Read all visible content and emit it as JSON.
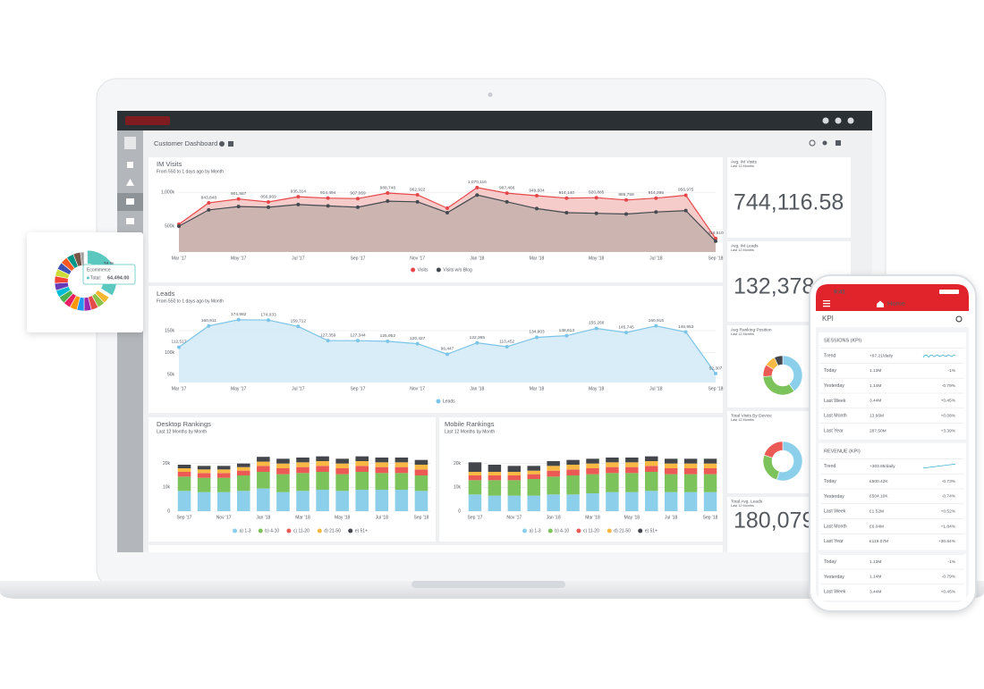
{
  "dashboard": {
    "title": "Customer Dashboard",
    "im_visits": {
      "type": "line",
      "title": "IM Visits",
      "subtitle": "From 550 to 1 days ago by Month",
      "categories": [
        "Mar '17",
        null,
        "May '17",
        null,
        "Jul '17",
        null,
        "Sep '17",
        null,
        "Nov '17",
        null,
        "Jan '18",
        null,
        "Mar '18",
        null,
        "May '18",
        null,
        "Jul '18",
        null,
        "Sep '18"
      ],
      "series": [
        {
          "name": "Visits",
          "color": "#e8474a",
          "area_color": "#f4c6c4",
          "values": [
            528000,
            843848,
            901587,
            856969,
            935314,
            914494,
            907069,
            988748,
            962922,
            765000,
            1070116,
            987466,
            949604,
            914140,
            920885,
            886759,
            914295,
            956975,
            319510
          ],
          "value_labels": [
            null,
            "843,848",
            "901,587",
            "856,969",
            "935,314",
            "914,494",
            "907,069",
            "988,748",
            "962,922",
            null,
            "1,070,116",
            "987,466",
            "949,604",
            "914,140",
            "920,885",
            "886,759",
            "914,295",
            "956,975",
            "319,510"
          ]
        },
        {
          "name": "Visits w/o Blog",
          "color": "#454a50",
          "area_color": "#c8b2ad",
          "values": [
            500000,
            740000,
            790000,
            780000,
            820000,
            800000,
            780000,
            870000,
            860000,
            700000,
            960000,
            860000,
            760000,
            700000,
            690000,
            680000,
            710000,
            730000,
            280000
          ]
        }
      ],
      "ylim": [
        120000,
        1200000
      ],
      "yticks": [
        {
          "value": 500000,
          "label": "500k"
        },
        {
          "value": 1000000,
          "label": "1,000k"
        }
      ],
      "grid": true
    },
    "leads": {
      "type": "line",
      "title": "Leads",
      "subtitle": "From 550 to 1 days ago by Month",
      "categories": [
        "Mar '17",
        null,
        "May '17",
        null,
        "Jul '17",
        null,
        "Sep '17",
        null,
        "Nov '17",
        null,
        "Jan '18",
        null,
        "Mar '18",
        null,
        "May '18",
        null,
        "Jul '18",
        null,
        "Sep '18"
      ],
      "series": [
        {
          "name": "Leads",
          "color": "#7cc4e8",
          "area_color": "#d4ebf7",
          "values": [
            112517,
            160911,
            174982,
            174033,
            159712,
            127359,
            127344,
            125952,
            120427,
            96447,
            122365,
            113452,
            134903,
            138613,
            155266,
            145745,
            160915,
            146953,
            52307
          ],
          "value_labels": [
            "112,517",
            "160,911",
            "174,982",
            "174,033",
            "159,712",
            "127,359",
            "127,344",
            "125,952",
            "120,427",
            "96,447",
            "122,365",
            "113,452",
            "134,903",
            "138,613",
            "155,266",
            "145,745",
            "160,915",
            "146,953",
            "52,307"
          ]
        }
      ],
      "ylim": [
        32000,
        201000
      ],
      "yticks": [
        {
          "value": 50000,
          "label": "50k"
        },
        {
          "value": 100000,
          "label": "100k"
        },
        {
          "value": 150000,
          "label": "150k"
        }
      ],
      "grid": true
    },
    "desktop_rankings": {
      "type": "stacked_bar",
      "title": "Desktop Rankings",
      "subtitle": "Last 12 Months by Month",
      "categories": [
        "Sep '17",
        null,
        "Nov '17",
        null,
        "Jan '18",
        null,
        "Mar '18",
        null,
        "May '18",
        null,
        "Jul '18",
        null,
        "Sep '18"
      ],
      "series": [
        {
          "name": "a) 1-3",
          "color": "#8ccfeb",
          "values": [
            8500,
            8000,
            8000,
            8500,
            9500,
            8000,
            8500,
            9000,
            8500,
            9000,
            9000,
            9000,
            8500
          ]
        },
        {
          "name": "b) 4-10",
          "color": "#7dc35b",
          "values": [
            6000,
            6000,
            6000,
            6500,
            7000,
            7500,
            7500,
            7500,
            7000,
            7500,
            7000,
            7000,
            6500
          ]
        },
        {
          "name": "c) 11-20",
          "color": "#ec5a55",
          "values": [
            2000,
            2000,
            2000,
            2000,
            2500,
            2500,
            2500,
            2500,
            2500,
            2500,
            2500,
            2500,
            2500
          ]
        },
        {
          "name": "d) 21-50",
          "color": "#f7b844",
          "values": [
            1500,
            1500,
            1500,
            1500,
            1800,
            2000,
            2000,
            2000,
            2000,
            2000,
            2000,
            2000,
            2000
          ]
        },
        {
          "name": "e) 51+",
          "color": "#43474c",
          "values": [
            1500,
            1500,
            1500,
            1500,
            2000,
            2000,
            2000,
            2000,
            2000,
            2000,
            2000,
            2000,
            2000
          ]
        }
      ],
      "ylim": [
        0,
        27000
      ],
      "yticks": [
        0,
        {
          "value": 10000,
          "label": "10k"
        },
        {
          "value": 20000,
          "label": "20k"
        }
      ],
      "grid": true
    },
    "mobile_rankings": {
      "type": "stacked_bar",
      "title": "Mobile Rankings",
      "subtitle": "Last 12 Months by Month",
      "categories": [
        "Sep '17",
        null,
        "Nov '17",
        null,
        "Jan '18",
        null,
        "Mar '18",
        null,
        "May '18",
        null,
        "Jul '18",
        null,
        "Sep '18"
      ],
      "series": [
        {
          "name": "a) 1-3",
          "color": "#8ccfeb",
          "values": [
            7000,
            6500,
            6500,
            6500,
            7000,
            7000,
            7500,
            8000,
            8000,
            8500,
            8000,
            8000,
            8000
          ]
        },
        {
          "name": "b) 4-10",
          "color": "#7dc35b",
          "values": [
            6000,
            6500,
            6500,
            7000,
            7500,
            8000,
            8000,
            8000,
            8000,
            8000,
            7500,
            7500,
            7500
          ]
        },
        {
          "name": "c) 11-20",
          "color": "#ec5a55",
          "values": [
            2000,
            2000,
            2000,
            2000,
            2500,
            2500,
            2500,
            2500,
            2500,
            2500,
            2500,
            2500,
            2500
          ]
        },
        {
          "name": "d) 21-50",
          "color": "#f7b844",
          "values": [
            1500,
            1500,
            1500,
            1500,
            2000,
            2000,
            2000,
            2000,
            2000,
            2000,
            2000,
            2000,
            2000
          ]
        },
        {
          "name": "e) 51+",
          "color": "#43474c",
          "values": [
            4000,
            3000,
            2500,
            2000,
            2000,
            2000,
            2000,
            2000,
            2000,
            2000,
            2000,
            2000,
            2000
          ]
        }
      ],
      "ylim": [
        0,
        27000
      ],
      "yticks": [
        0,
        {
          "value": 10000,
          "label": "10k"
        },
        {
          "value": 20000,
          "label": "20k"
        }
      ],
      "grid": true
    },
    "cards": [
      {
        "title": "Avg. IM Visits",
        "subtitle": "Last 12 Months",
        "value": "744,116.58"
      },
      {
        "title": "Avg. IM Leads",
        "subtitle": "Last 12 Months",
        "value": "132,378"
      },
      {
        "title": "Avg Ranking Position",
        "subtitle": "Last 12 Months",
        "chart": {
          "type": "pie",
          "values": [
            40,
            34,
            10,
            9,
            7
          ],
          "colors": [
            "#8ccfeb",
            "#7dc35b",
            "#ec5a55",
            "#f7b844",
            "#43474c"
          ]
        }
      },
      {
        "title": "Total Visits By Device",
        "subtitle": "Last 12 Months",
        "chart": {
          "type": "pie",
          "values": [
            55,
            25,
            20
          ],
          "colors": [
            "#8ccfeb",
            "#7dc35b",
            "#ec5a55"
          ]
        }
      },
      {
        "title": "Total Avg. Leads",
        "subtitle": "Last 12 Months",
        "value": "180,079"
      }
    ]
  },
  "popup": {
    "chart": {
      "type": "pie",
      "values": [
        34,
        4,
        4,
        4,
        4,
        4,
        4,
        4,
        4,
        4,
        4,
        4,
        4,
        4,
        4,
        4,
        4,
        2
      ],
      "value_labels": [
        "34 %",
        null,
        null,
        null,
        null,
        null,
        null,
        null,
        null,
        null,
        null,
        null,
        null,
        null,
        null,
        null,
        null,
        null
      ],
      "colors": [
        "#5bc8c0",
        "#f5b731",
        "#8bc34a",
        "#e64a4a",
        "#9c27b0",
        "#2196f3",
        "#ff9800",
        "#e91e63",
        "#4caf50",
        "#00bcd4",
        "#673ab7",
        "#f44336",
        "#cddc39",
        "#3f51b5",
        "#ff5722",
        "#009688",
        "#795548",
        "#9e9e9e"
      ]
    },
    "tooltip": {
      "category": "Ecommerce",
      "label": "Total:",
      "value": "64,494.00"
    }
  },
  "phone": {
    "time": "9:41",
    "nav_title": "Home",
    "heading": "KPI",
    "sections": [
      {
        "title": "SESSIONS (KPI)",
        "rows": [
          {
            "label": "Trend",
            "value": "+97.21/daily"
          },
          {
            "label": "Today",
            "value": "1.13M",
            "change": "-1%"
          },
          {
            "label": "Yesterday",
            "value": "1.14M",
            "change": "-0.79%"
          },
          {
            "label": "Last Week",
            "value": "3.44M",
            "change": "+0.45%"
          },
          {
            "label": "Last Month",
            "value": "13.66M",
            "change": "+0.08%"
          },
          {
            "label": "Last Year",
            "value": "287.50M",
            "change": "+3.39%"
          }
        ]
      },
      {
        "title": "REVENUE (KPI)",
        "rows": [
          {
            "label": "Trend",
            "value": "+303.85/daily"
          },
          {
            "label": "Today",
            "value": "£500.42K",
            "change": "-0.73%"
          },
          {
            "label": "Yesterday",
            "value": "£504.10K",
            "change": "-0.74%"
          },
          {
            "label": "Last Week",
            "value": "£1.52M",
            "change": "+0.52%"
          },
          {
            "label": "Last Month",
            "value": "£6.04M",
            "change": "+1.84%"
          },
          {
            "label": "Last Year",
            "value": "£119.07M",
            "change": "+30.64%"
          }
        ]
      },
      {
        "rows": [
          {
            "label": "Today",
            "value": "1.13M",
            "change": "-1%"
          },
          {
            "label": "Yesterday",
            "value": "1.14M",
            "change": "-0.79%"
          },
          {
            "label": "Last Week",
            "value": "3.44M",
            "change": "+0.45%"
          }
        ]
      }
    ]
  }
}
